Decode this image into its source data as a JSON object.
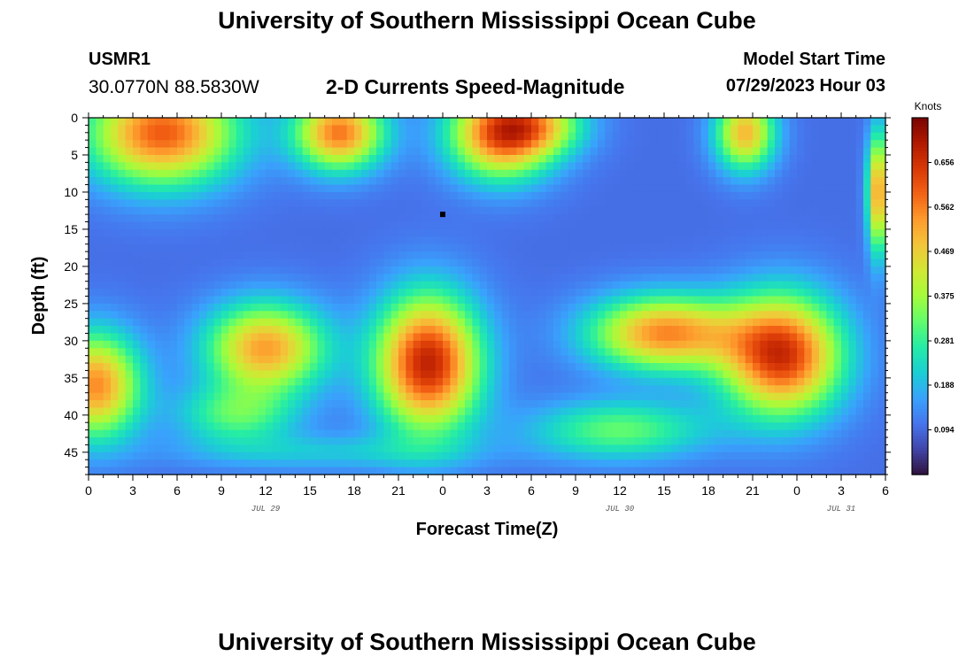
{
  "header": {
    "title": "University of Southern Mississippi Ocean Cube",
    "station": "USMR1",
    "coordinates": "30.0770N  88.5830W",
    "subtitle": "2-D Currents Speed-Magnitude",
    "model_start_label": "Model Start Time",
    "model_start_value": "07/29/2023 Hour 03"
  },
  "footer": {
    "title": "University of Southern Mississippi Ocean Cube"
  },
  "chart_data": {
    "type": "heatmap",
    "title": "2-D Currents Speed-Magnitude",
    "xlabel": "Forecast Time(Z)",
    "ylabel": "Depth (ft)",
    "x_tick_labels": [
      "0",
      "3",
      "6",
      "9",
      "12",
      "15",
      "18",
      "21",
      "0",
      "3",
      "6",
      "9",
      "12",
      "15",
      "18",
      "21",
      "0",
      "3",
      "6"
    ],
    "x_range_hours": [
      0,
      54
    ],
    "day_labels": [
      {
        "label": "JUL 29",
        "hour": 12
      },
      {
        "label": "JUL 30",
        "hour": 36
      },
      {
        "label": "JUL 31",
        "hour": 51
      }
    ],
    "y_ticks": [
      0,
      5,
      10,
      15,
      20,
      25,
      30,
      35,
      40,
      45
    ],
    "y_range_ft": [
      0,
      48
    ],
    "colorbar": {
      "units": "Knots",
      "tick_labels": [
        "0.094",
        "0.188",
        "0.281",
        "0.375",
        "0.469",
        "0.562",
        "0.656"
      ],
      "tick_values": [
        0.094,
        0.188,
        0.281,
        0.375,
        0.469,
        0.562,
        0.656
      ],
      "range": [
        0.0,
        0.75
      ],
      "colors": [
        "#30123b",
        "#4145ab",
        "#4675ed",
        "#39a2fc",
        "#1bcfd4",
        "#24eca6",
        "#61fc6c",
        "#a4fc3b",
        "#d1e834",
        "#f3c63a",
        "#fe9b2d",
        "#f36315",
        "#d93806",
        "#b11901",
        "#7a0403"
      ]
    },
    "marker": {
      "hour": 24,
      "depth_ft": 13
    },
    "field_description": "current speed (knots) vs forecast hour and depth",
    "blobs": [
      {
        "h": 5,
        "d": 2,
        "sh": 5,
        "sd": 7,
        "a": 0.5
      },
      {
        "h": 17,
        "d": 2,
        "sh": 3,
        "sd": 5,
        "a": 0.47
      },
      {
        "h": 28,
        "d": 2,
        "sh": 3.5,
        "sd": 6,
        "a": 0.52
      },
      {
        "h": 31,
        "d": 1,
        "sh": 3,
        "sd": 4,
        "a": 0.2
      },
      {
        "h": 44.5,
        "d": 2,
        "sh": 2,
        "sd": 5,
        "a": 0.4
      },
      {
        "h": 53.5,
        "d": 10,
        "sh": 0.7,
        "sd": 8,
        "a": 0.45
      },
      {
        "h": 0.5,
        "d": 36,
        "sh": 3,
        "sd": 7,
        "a": 0.45
      },
      {
        "h": 10,
        "d": 40,
        "sh": 4,
        "sd": 4,
        "a": 0.2
      },
      {
        "h": 12,
        "d": 31,
        "sh": 4,
        "sd": 6,
        "a": 0.43
      },
      {
        "h": 23,
        "d": 33,
        "sh": 3.5,
        "sd": 9,
        "a": 0.58
      },
      {
        "h": 36,
        "d": 42,
        "sh": 6,
        "sd": 4,
        "a": 0.22
      },
      {
        "h": 39,
        "d": 29,
        "sh": 5,
        "sd": 5,
        "a": 0.45
      },
      {
        "h": 47,
        "d": 32,
        "sh": 4,
        "sd": 8,
        "a": 0.55
      },
      {
        "h": 16,
        "d": 45,
        "sh": 10,
        "sd": 2.5,
        "a": 0.1
      }
    ]
  }
}
